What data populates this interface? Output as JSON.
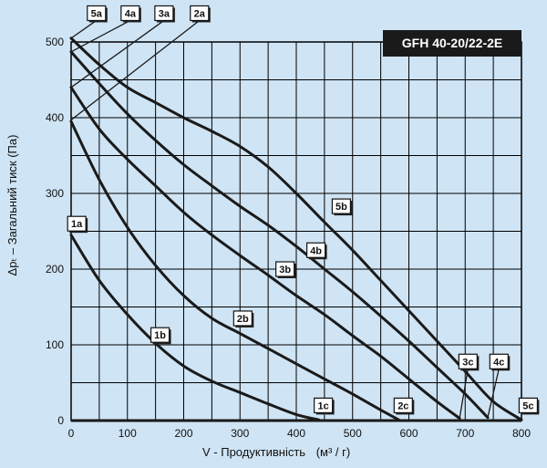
{
  "chart_data": {
    "type": "line",
    "title": "GFH 40-20/22-2E",
    "xlabel": "V - Продуктивність",
    "xunit": "(м³ / г)",
    "ylabel": "Δpₜ – Загальний тиск (Па)",
    "xlim": [
      0,
      800
    ],
    "ylim": [
      0,
      500
    ],
    "xticks": [
      0,
      100,
      200,
      300,
      400,
      500,
      600,
      700,
      800
    ],
    "yticks": [
      0,
      100,
      200,
      300,
      400,
      500
    ],
    "grid": true,
    "series": [
      {
        "name": "1",
        "x": [
          0,
          50,
          100,
          150,
          200,
          250,
          300,
          350,
          400,
          440
        ],
        "y": [
          245,
          185,
          140,
          102,
          72,
          52,
          37,
          22,
          8,
          1
        ]
      },
      {
        "name": "2",
        "x": [
          0,
          50,
          100,
          150,
          200,
          250,
          300,
          350,
          400,
          450,
          500,
          550,
          582
        ],
        "y": [
          395,
          318,
          255,
          205,
          165,
          135,
          115,
          95,
          75,
          55,
          35,
          14,
          1
        ]
      },
      {
        "name": "3",
        "x": [
          0,
          50,
          100,
          150,
          200,
          250,
          300,
          350,
          400,
          450,
          500,
          550,
          600,
          650,
          690
        ],
        "y": [
          440,
          385,
          345,
          310,
          275,
          245,
          218,
          192,
          165,
          140,
          112,
          85,
          55,
          25,
          3
        ]
      },
      {
        "name": "4",
        "x": [
          0,
          50,
          100,
          150,
          200,
          250,
          300,
          350,
          400,
          450,
          500,
          550,
          600,
          650,
          700,
          740
        ],
        "y": [
          487,
          445,
          405,
          370,
          338,
          310,
          283,
          258,
          230,
          200,
          170,
          138,
          105,
          70,
          35,
          4
        ]
      },
      {
        "name": "5",
        "x": [
          0,
          50,
          100,
          150,
          200,
          250,
          300,
          350,
          400,
          450,
          500,
          550,
          600,
          650,
          700,
          750,
          800
        ],
        "y": [
          505,
          470,
          440,
          420,
          400,
          382,
          362,
          335,
          300,
          262,
          225,
          185,
          145,
          105,
          65,
          25,
          1
        ]
      }
    ],
    "labels": [
      {
        "text": "1a",
        "x": 10,
        "y": 260,
        "stroke_to": null
      },
      {
        "text": "1b",
        "x": 158,
        "y": 113,
        "stroke_to": null
      },
      {
        "text": "1c",
        "x": 448,
        "y": 20,
        "stroke_to": null
      },
      {
        "text": "2a",
        "x": 228,
        "y": 538,
        "stroke_to": [
          0,
          397
        ]
      },
      {
        "text": "2b",
        "x": 305,
        "y": 135,
        "stroke_to": null
      },
      {
        "text": "2c",
        "x": 590,
        "y": 20,
        "stroke_to": null
      },
      {
        "text": "3a",
        "x": 165,
        "y": 538,
        "stroke_to": [
          0,
          440
        ]
      },
      {
        "text": "3b",
        "x": 380,
        "y": 200,
        "stroke_to": null
      },
      {
        "text": "3c",
        "x": 705,
        "y": 78,
        "stroke_to": [
          690,
          3
        ]
      },
      {
        "text": "4a",
        "x": 105,
        "y": 538,
        "stroke_to": [
          0,
          487
        ]
      },
      {
        "text": "4b",
        "x": 435,
        "y": 225,
        "stroke_to": null
      },
      {
        "text": "4c",
        "x": 760,
        "y": 78,
        "stroke_to": [
          740,
          4
        ]
      },
      {
        "text": "5a",
        "x": 45,
        "y": 538,
        "stroke_to": [
          0,
          505
        ]
      },
      {
        "text": "5b",
        "x": 480,
        "y": 283,
        "stroke_to": null
      },
      {
        "text": "5c",
        "x": 812,
        "y": 20,
        "stroke_to": null
      }
    ],
    "colors": {
      "background": "#cfe4f4",
      "grid": "#000000",
      "curve": "#1a1a1a",
      "title_bg": "#1a1a1a",
      "title_fg": "#ffffff",
      "label_bg": "#ffffff"
    }
  }
}
